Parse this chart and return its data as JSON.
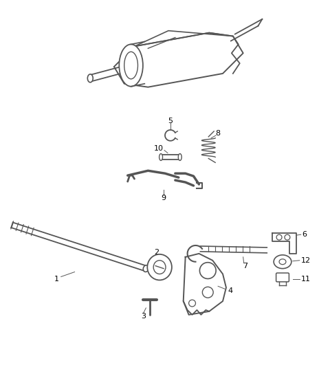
{
  "background_color": "#ffffff",
  "line_color": "#555555",
  "label_color": "#000000",
  "fig_width": 4.8,
  "fig_height": 5.44,
  "dpi": 100
}
